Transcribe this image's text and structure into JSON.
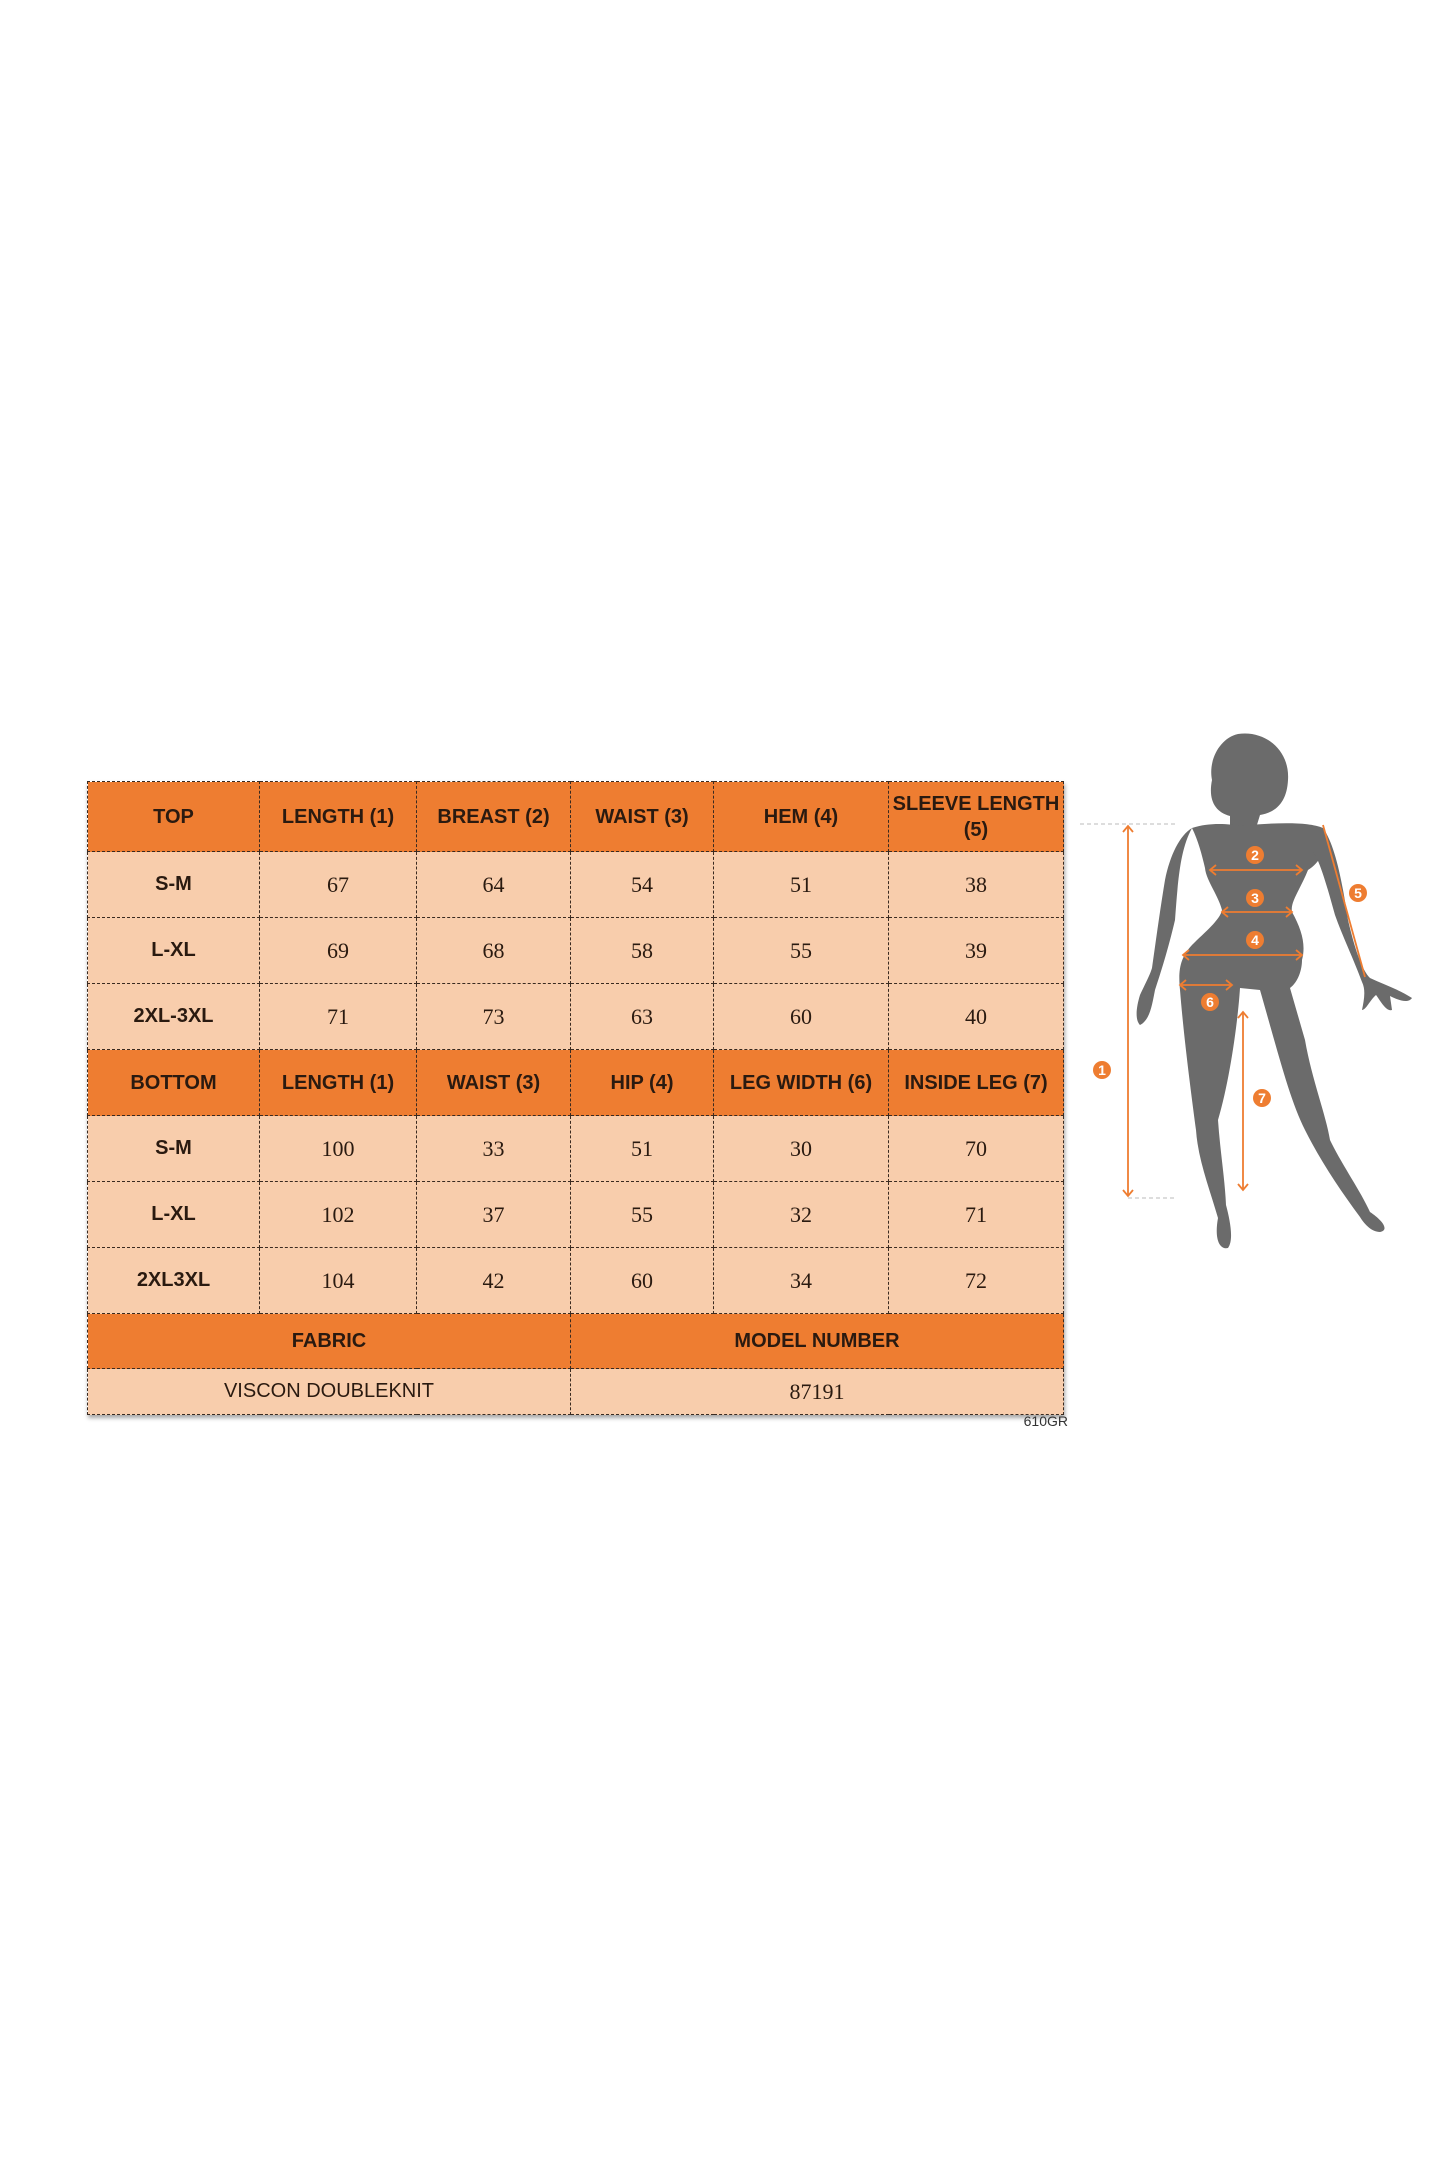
{
  "top": {
    "headers": [
      "TOP",
      "LENGTH (1)",
      "BREAST (2)",
      "WAIST (3)",
      "HEM (4)",
      "SLEEVE LENGTH (5)"
    ],
    "rows": [
      [
        "S-M",
        "67",
        "64",
        "54",
        "51",
        "38"
      ],
      [
        "L-XL",
        "69",
        "68",
        "58",
        "55",
        "39"
      ],
      [
        "2XL-3XL",
        "71",
        "73",
        "63",
        "60",
        "40"
      ]
    ]
  },
  "bottom": {
    "headers": [
      "BOTTOM",
      "LENGTH (1)",
      "WAIST (3)",
      "HIP (4)",
      "LEG WIDTH (6)",
      "INSIDE LEG (7)"
    ],
    "rows": [
      [
        "S-M",
        "100",
        "33",
        "51",
        "30",
        "70"
      ],
      [
        "L-XL",
        "102",
        "37",
        "55",
        "32",
        "71"
      ],
      [
        "2XL3XL",
        "104",
        "42",
        "60",
        "34",
        "72"
      ]
    ]
  },
  "info": {
    "fabric_label": "FABRIC",
    "model_label": "MODEL NUMBER",
    "fabric_value": "VISCON DOUBLEKNIT",
    "model_value": "87191"
  },
  "code": "610GR",
  "figure": {
    "markers": [
      "1",
      "2",
      "3",
      "4",
      "5",
      "6",
      "7"
    ],
    "colors": {
      "accent": "#ee7d31",
      "silhouette": "#6b6b6b",
      "cell": "#f8cdac"
    }
  }
}
